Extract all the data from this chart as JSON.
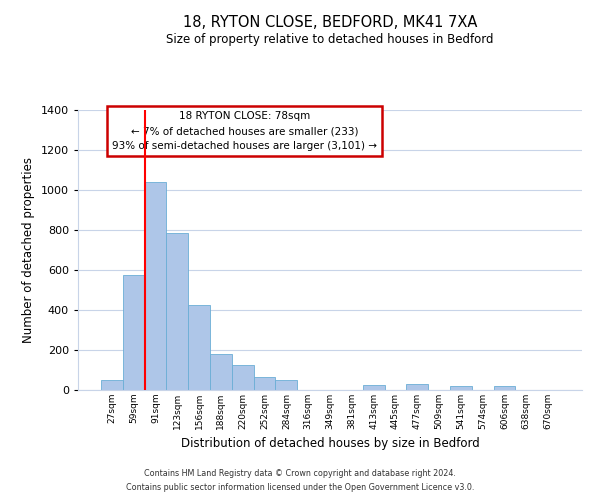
{
  "title": "18, RYTON CLOSE, BEDFORD, MK41 7XA",
  "subtitle": "Size of property relative to detached houses in Bedford",
  "xlabel": "Distribution of detached houses by size in Bedford",
  "ylabel": "Number of detached properties",
  "bar_labels": [
    "27sqm",
    "59sqm",
    "91sqm",
    "123sqm",
    "156sqm",
    "188sqm",
    "220sqm",
    "252sqm",
    "284sqm",
    "316sqm",
    "349sqm",
    "381sqm",
    "413sqm",
    "445sqm",
    "477sqm",
    "509sqm",
    "541sqm",
    "574sqm",
    "606sqm",
    "638sqm",
    "670sqm"
  ],
  "bar_values": [
    50,
    575,
    1040,
    785,
    425,
    180,
    125,
    65,
    50,
    0,
    0,
    0,
    25,
    0,
    30,
    0,
    20,
    0,
    18,
    0,
    0
  ],
  "bar_color": "#aec6e8",
  "bar_edge_color": "#6baed6",
  "ylim": [
    0,
    1400
  ],
  "yticks": [
    0,
    200,
    400,
    600,
    800,
    1000,
    1200,
    1400
  ],
  "red_line_x": 1.53,
  "annotation_title": "18 RYTON CLOSE: 78sqm",
  "annotation_line1": "← 7% of detached houses are smaller (233)",
  "annotation_line2": "93% of semi-detached houses are larger (3,101) →",
  "annotation_box_color": "#ffffff",
  "annotation_box_edge": "#cc0000",
  "footer1": "Contains HM Land Registry data © Crown copyright and database right 2024.",
  "footer2": "Contains public sector information licensed under the Open Government Licence v3.0.",
  "background_color": "#ffffff",
  "grid_color": "#c8d4e8"
}
